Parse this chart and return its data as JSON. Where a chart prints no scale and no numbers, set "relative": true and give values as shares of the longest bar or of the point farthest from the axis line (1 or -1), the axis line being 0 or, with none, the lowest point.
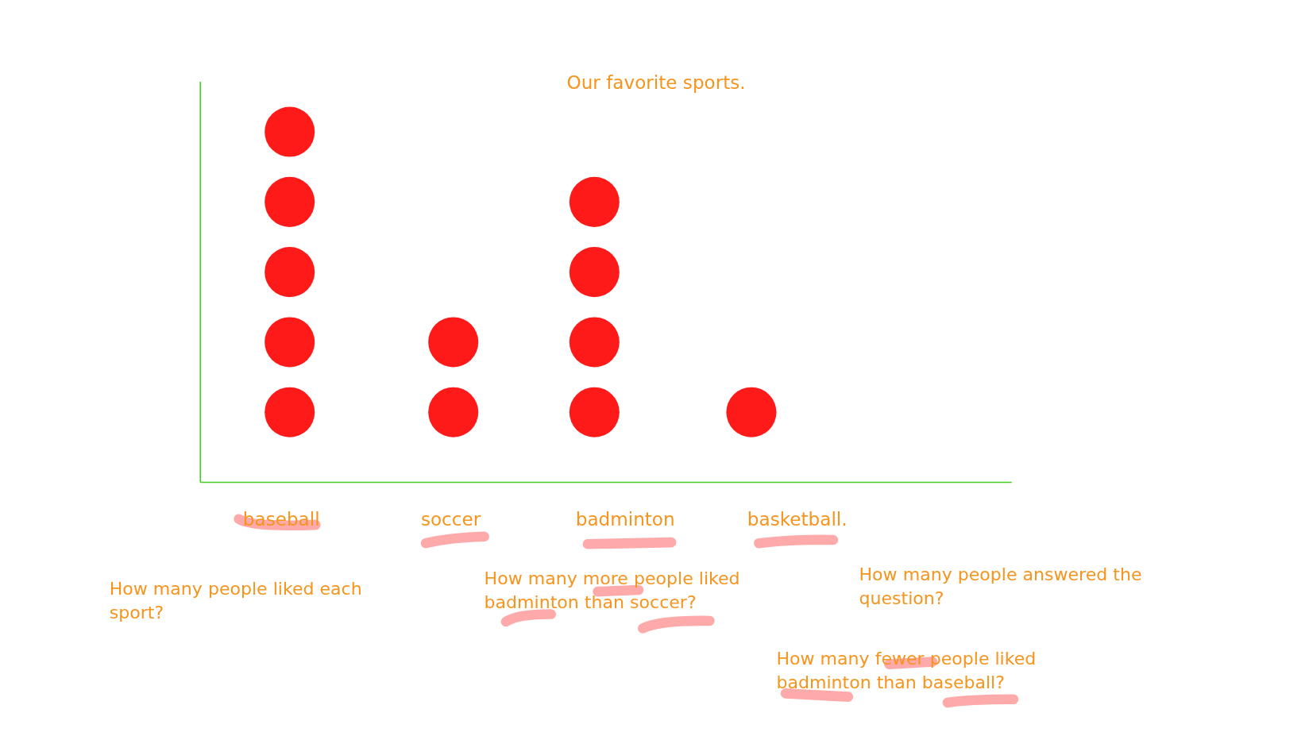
{
  "chart_data": {
    "type": "scatter",
    "title": "Our favorite sports.",
    "categories": [
      "baseball",
      "soccer",
      "badminton",
      "basketball."
    ],
    "relative": true,
    "marker": "circle",
    "series": [
      {
        "color": "#ff1a1a",
        "x": [
          "baseball",
          "baseball",
          "baseball",
          "baseball",
          "baseball",
          "soccer",
          "soccer",
          "badminton",
          "badminton",
          "badminton",
          "badminton",
          "basketball."
        ],
        "values": [
          0.2,
          0.4,
          0.6,
          0.8,
          1,
          0.2,
          0.4,
          0.2,
          0.4,
          0.6,
          0.8,
          0.2
        ]
      }
    ],
    "annotations": [
      "How many people liked each sport?",
      "How many more people liked badminton than soccer?",
      "How many people answered the question?",
      "How many fewer people liked badminton than baseball?"
    ]
  }
}
